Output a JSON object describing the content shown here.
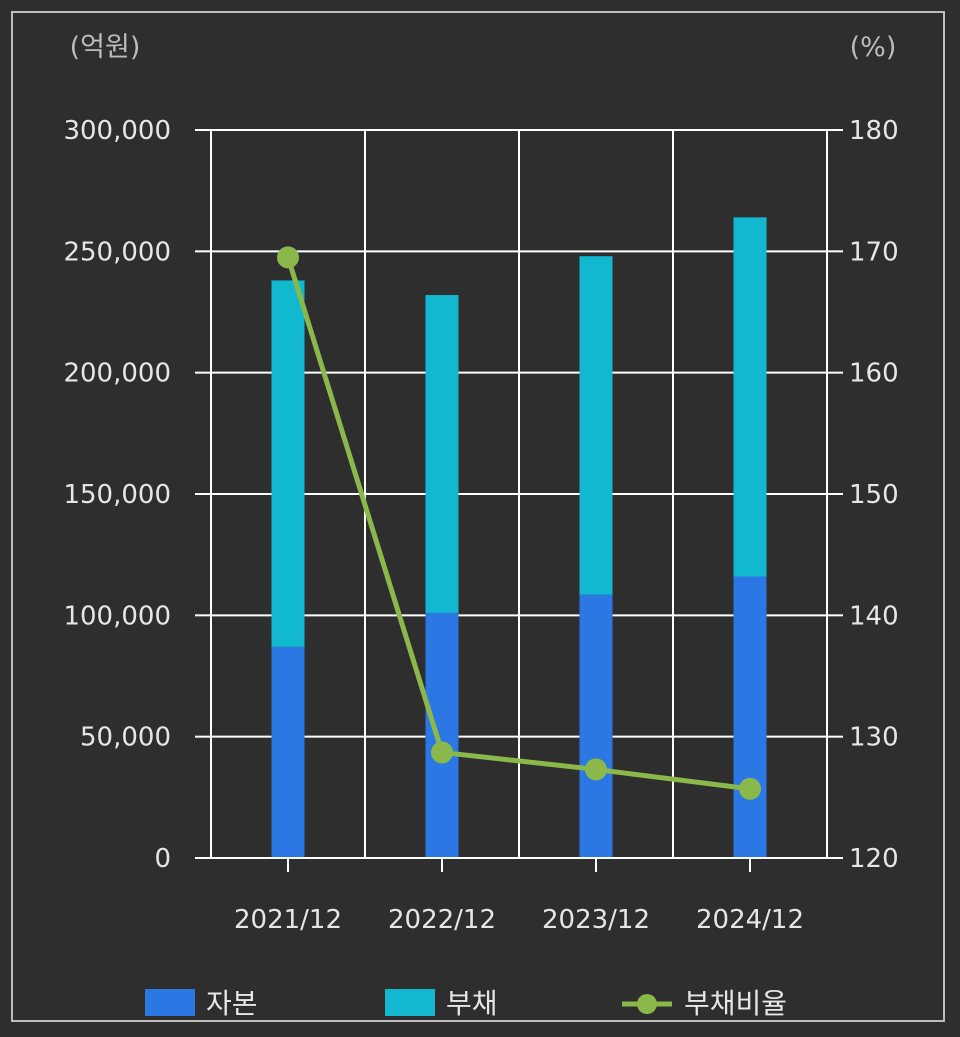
{
  "chart_data": {
    "type": "bar",
    "stacked": true,
    "categories": [
      "2021/12",
      "2022/12",
      "2023/12",
      "2024/12"
    ],
    "series": [
      {
        "name": "자본",
        "type": "bar",
        "axis": "left",
        "color": "#2b78e4",
        "values": [
          87000,
          101000,
          108500,
          116000
        ]
      },
      {
        "name": "부채",
        "type": "bar",
        "axis": "left",
        "color": "#12b8d0",
        "values": [
          151000,
          131000,
          139500,
          148000
        ]
      },
      {
        "name": "부채비율",
        "type": "line",
        "axis": "right",
        "color": "#8bb84a",
        "values": [
          169.5,
          128.7,
          127.3,
          125.7
        ]
      }
    ],
    "y_left": {
      "unit_label": "(억원)",
      "range": [
        0,
        300000
      ],
      "ticks": [
        0,
        50000,
        100000,
        150000,
        200000,
        250000,
        300000
      ],
      "tick_labels": [
        "0",
        "50,000",
        "100,000",
        "150,000",
        "200,000",
        "250,000",
        "300,000"
      ]
    },
    "y_right": {
      "unit_label": "(%)",
      "range": [
        120,
        180
      ],
      "ticks": [
        120,
        130,
        140,
        150,
        160,
        170,
        180
      ],
      "tick_labels": [
        "120",
        "130",
        "140",
        "150",
        "160",
        "170",
        "180"
      ]
    },
    "grid": true,
    "legend": {
      "placement": "bottom"
    }
  }
}
